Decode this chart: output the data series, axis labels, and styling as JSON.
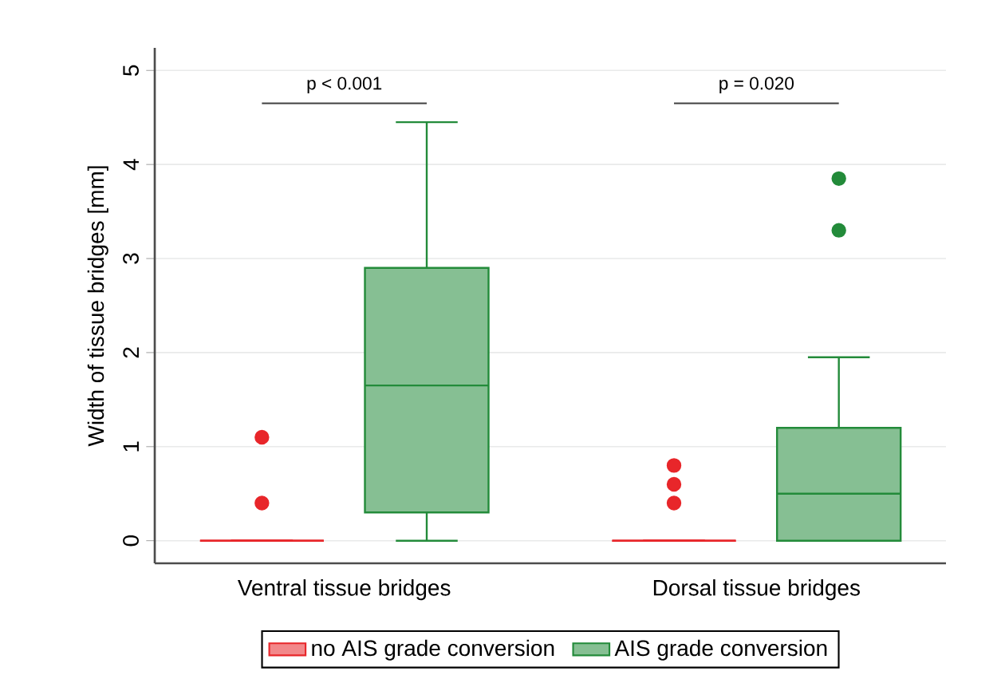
{
  "chart_data": {
    "type": "box",
    "ylabel": "Width of tissue bridges [mm]",
    "categories": [
      "Ventral tissue bridges",
      "Dorsal tissue bridges"
    ],
    "ylim": [
      -0.24,
      5.24
    ],
    "yticks": [
      0,
      1,
      2,
      3,
      4,
      5
    ],
    "grid": "y",
    "legend": "bottom",
    "marker": "circle",
    "annotations": [
      "p < 0.001",
      "p = 0.020"
    ],
    "series": [
      {
        "name": "no AIS grade conversion",
        "color": "#e8262a",
        "boxes": [
          {
            "low": 0,
            "q1": 0,
            "median": 0,
            "q3": 0,
            "high": 0,
            "outliers": [
              1.1,
              0.4
            ]
          },
          {
            "low": 0,
            "q1": 0,
            "median": 0,
            "q3": 0,
            "high": 0,
            "outliers": [
              0.8,
              0.6,
              0.4
            ]
          }
        ]
      },
      {
        "name": "AIS grade conversion",
        "color": "#238b3a",
        "boxes": [
          {
            "low": 0,
            "q1": 0.3,
            "median": 1.65,
            "q3": 2.9,
            "high": 4.45
          },
          {
            "low": 0,
            "q1": 0,
            "median": 0.5,
            "q3": 1.2,
            "high": 1.95,
            "outliers": [
              3.85,
              3.3
            ]
          }
        ]
      }
    ]
  }
}
